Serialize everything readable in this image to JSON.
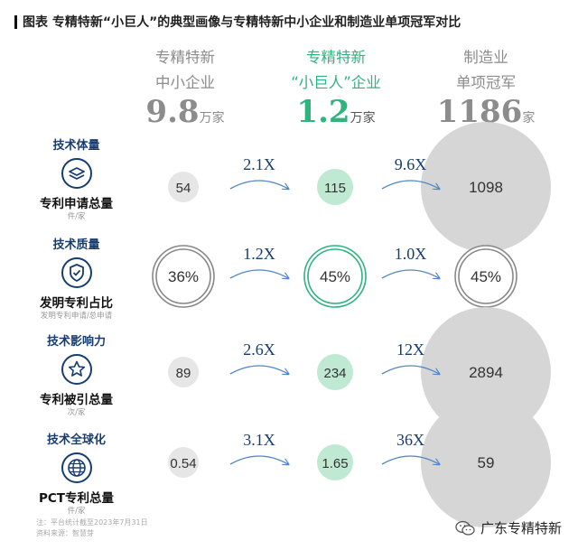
{
  "title": "图表 专精特新“小巨人”的典型画像与专精特新中小企业和制造业单项冠军对比",
  "columns": [
    {
      "line1": "专精特新",
      "line2": "中小企业",
      "number": "9.8",
      "unit": "万家",
      "color": "#8c8c8c"
    },
    {
      "line1": "专精特新",
      "line2": "“小巨人”企业",
      "number": "1.2",
      "unit": "万家",
      "color": "#2fb37f"
    },
    {
      "line1": "制造业",
      "line2": "单项冠军",
      "number": "1186",
      "unit": "家",
      "color": "#8c8c8c"
    }
  ],
  "rows": [
    {
      "category": "技术体量",
      "metric": "专利申请总量",
      "sub": "件/家",
      "icon": "layers-icon"
    },
    {
      "category": "技术质量",
      "metric": "发明专利占比",
      "sub": "发明专利申请/总申请",
      "icon": "shield-check-icon"
    },
    {
      "category": "技术影响力",
      "metric": "专利被引总量",
      "sub": "次/家",
      "icon": "star-icon"
    },
    {
      "category": "技术全球化",
      "metric": "PCT专利总量",
      "sub": "件/家",
      "icon": "globe-icon"
    }
  ],
  "chart_data": {
    "type": "bubble",
    "title": "图表 专精特新“小巨人”的典型画像与专精特新中小企业和制造业单项冠军对比",
    "categories": [
      "专精特新中小企业",
      "专精特新“小巨人”企业",
      "制造业单项冠军"
    ],
    "series": [
      {
        "name": "专利申请总量",
        "values": [
          54,
          115,
          1098
        ],
        "labels": [
          "54",
          "115",
          "1098"
        ],
        "ratios": [
          "2.1X",
          "9.6X"
        ]
      },
      {
        "name": "发明专利占比",
        "values": [
          36,
          45,
          45
        ],
        "labels": [
          "36%",
          "45%",
          "45%"
        ],
        "ratios": [
          "1.2X",
          "1.0X"
        ]
      },
      {
        "name": "专利被引总量",
        "values": [
          89,
          234,
          2894
        ],
        "labels": [
          "89",
          "234",
          "2894"
        ],
        "ratios": [
          "2.6X",
          "12X"
        ]
      },
      {
        "name": "PCT专利总量",
        "values": [
          0.54,
          1.65,
          59
        ],
        "labels": [
          "0.54",
          "1.65",
          "59"
        ],
        "ratios": [
          "3.1X",
          "36X"
        ]
      }
    ]
  },
  "footnote": {
    "line1": "注：平台统计截至2023年7月31日",
    "line2": "资料来源：智慧芽"
  },
  "brand": {
    "name": "广东专精特新",
    "icon": "wechat-icon"
  },
  "colors": {
    "green": "#2fb37f",
    "navy": "#173d70",
    "bubble_gray": "#d4d4d4",
    "arrow": "#4f86c6"
  }
}
